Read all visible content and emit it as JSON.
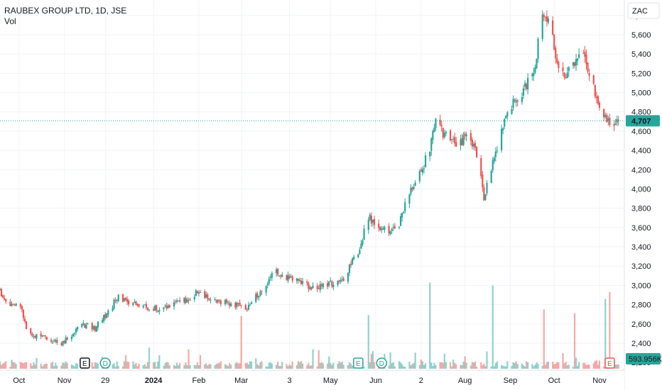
{
  "legend": {
    "symbol": "RAUBEX GROUP LTD, 1D, JSE",
    "volume_label": "Vol"
  },
  "currency_button": "ZAC",
  "price_badge": "4,707",
  "volume_badge": "593.956K",
  "events": [
    {
      "label": "E",
      "date": "2023-11-15",
      "style": "dark"
    },
    {
      "label": "D",
      "date": "2023-11-29",
      "style": "green"
    },
    {
      "label": "E",
      "date": "2024-05-20",
      "style": "green"
    },
    {
      "label": "D",
      "date": "2024-06-05",
      "style": "green"
    },
    {
      "label": "E",
      "date": "2024-11-08",
      "style": "red"
    }
  ],
  "colors": {
    "up": "#26a69a",
    "down": "#ef5350",
    "grid": "#f0f3fa",
    "price_line": "#26a69a"
  },
  "chart_data": {
    "type": "candlestick",
    "title": "RAUBEX GROUP LTD, 1D, JSE",
    "currency": "ZAC",
    "y_ticks": [
      2200,
      2400,
      2600,
      2800,
      3000,
      3200,
      3400,
      3600,
      3800,
      4000,
      4200,
      4400,
      4600,
      4800,
      5000,
      5200,
      5400,
      5600,
      5800
    ],
    "ylim": [
      2120,
      5960
    ],
    "x_range": [
      "2023-09-18",
      "2024-11-18"
    ],
    "x_ticks": [
      {
        "label": "Oct",
        "date": "2023-10-01"
      },
      {
        "label": "Nov",
        "date": "2023-11-01"
      },
      {
        "label": "29",
        "date": "2023-11-29"
      },
      {
        "label": "2024",
        "date": "2024-01-01"
      },
      {
        "label": "Feb",
        "date": "2024-02-01"
      },
      {
        "label": "Mar",
        "date": "2024-03-01"
      },
      {
        "label": "3",
        "date": "2024-04-03"
      },
      {
        "label": "May",
        "date": "2024-05-01"
      },
      {
        "label": "Jun",
        "date": "2024-06-01"
      },
      {
        "label": "2",
        "date": "2024-07-02"
      },
      {
        "label": "Aug",
        "date": "2024-08-01"
      },
      {
        "label": "Sep",
        "date": "2024-09-01"
      },
      {
        "label": "Oct",
        "date": "2024-10-01"
      },
      {
        "label": "Nov",
        "date": "2024-11-01"
      }
    ],
    "last_price": 4707,
    "last_volume": 593956,
    "close_path": [
      [
        "2023-09-18",
        2950
      ],
      [
        "2023-09-22",
        2820
      ],
      [
        "2023-10-02",
        2800
      ],
      [
        "2023-10-06",
        2560
      ],
      [
        "2023-10-12",
        2480
      ],
      [
        "2023-10-20",
        2460
      ],
      [
        "2023-10-30",
        2380
      ],
      [
        "2023-11-06",
        2490
      ],
      [
        "2023-11-14",
        2590
      ],
      [
        "2023-11-22",
        2560
      ],
      [
        "2023-12-01",
        2720
      ],
      [
        "2023-12-08",
        2900
      ],
      [
        "2023-12-15",
        2810
      ],
      [
        "2024-01-05",
        2760
      ],
      [
        "2024-01-25",
        2850
      ],
      [
        "2024-02-01",
        2950
      ],
      [
        "2024-02-08",
        2850
      ],
      [
        "2024-02-22",
        2810
      ],
      [
        "2024-03-05",
        2750
      ],
      [
        "2024-03-15",
        2960
      ],
      [
        "2024-03-25",
        3150
      ],
      [
        "2024-04-05",
        3060
      ],
      [
        "2024-04-15",
        2990
      ],
      [
        "2024-04-25",
        2980
      ],
      [
        "2024-05-10",
        3080
      ],
      [
        "2024-05-20",
        3350
      ],
      [
        "2024-05-27",
        3700
      ],
      [
        "2024-06-03",
        3620
      ],
      [
        "2024-06-10",
        3560
      ],
      [
        "2024-06-17",
        3650
      ],
      [
        "2024-06-24",
        3950
      ],
      [
        "2024-07-01",
        4150
      ],
      [
        "2024-07-08",
        4420
      ],
      [
        "2024-07-12",
        4720
      ],
      [
        "2024-07-18",
        4550
      ],
      [
        "2024-07-26",
        4460
      ],
      [
        "2024-08-02",
        4520
      ],
      [
        "2024-08-09",
        4380
      ],
      [
        "2024-08-14",
        3900
      ],
      [
        "2024-08-20",
        4250
      ],
      [
        "2024-08-28",
        4700
      ],
      [
        "2024-09-05",
        4950
      ],
      [
        "2024-09-12",
        5050
      ],
      [
        "2024-09-18",
        5300
      ],
      [
        "2024-09-23",
        5800
      ],
      [
        "2024-09-28",
        5720
      ],
      [
        "2024-10-02",
        5350
      ],
      [
        "2024-10-08",
        5180
      ],
      [
        "2024-10-14",
        5300
      ],
      [
        "2024-10-18",
        5450
      ],
      [
        "2024-10-24",
        5250
      ],
      [
        "2024-10-30",
        4950
      ],
      [
        "2024-11-05",
        4750
      ],
      [
        "2024-11-11",
        4650
      ],
      [
        "2024-11-14",
        4707
      ]
    ],
    "volume_spikes": [
      [
        "2024-03-01",
        0.55
      ],
      [
        "2024-05-27",
        0.56
      ],
      [
        "2024-07-08",
        0.9
      ],
      [
        "2024-08-20",
        0.87
      ],
      [
        "2024-09-24",
        0.62
      ],
      [
        "2024-10-15",
        0.58
      ],
      [
        "2024-11-05",
        0.73
      ],
      [
        "2024-11-08",
        0.8
      ]
    ]
  }
}
